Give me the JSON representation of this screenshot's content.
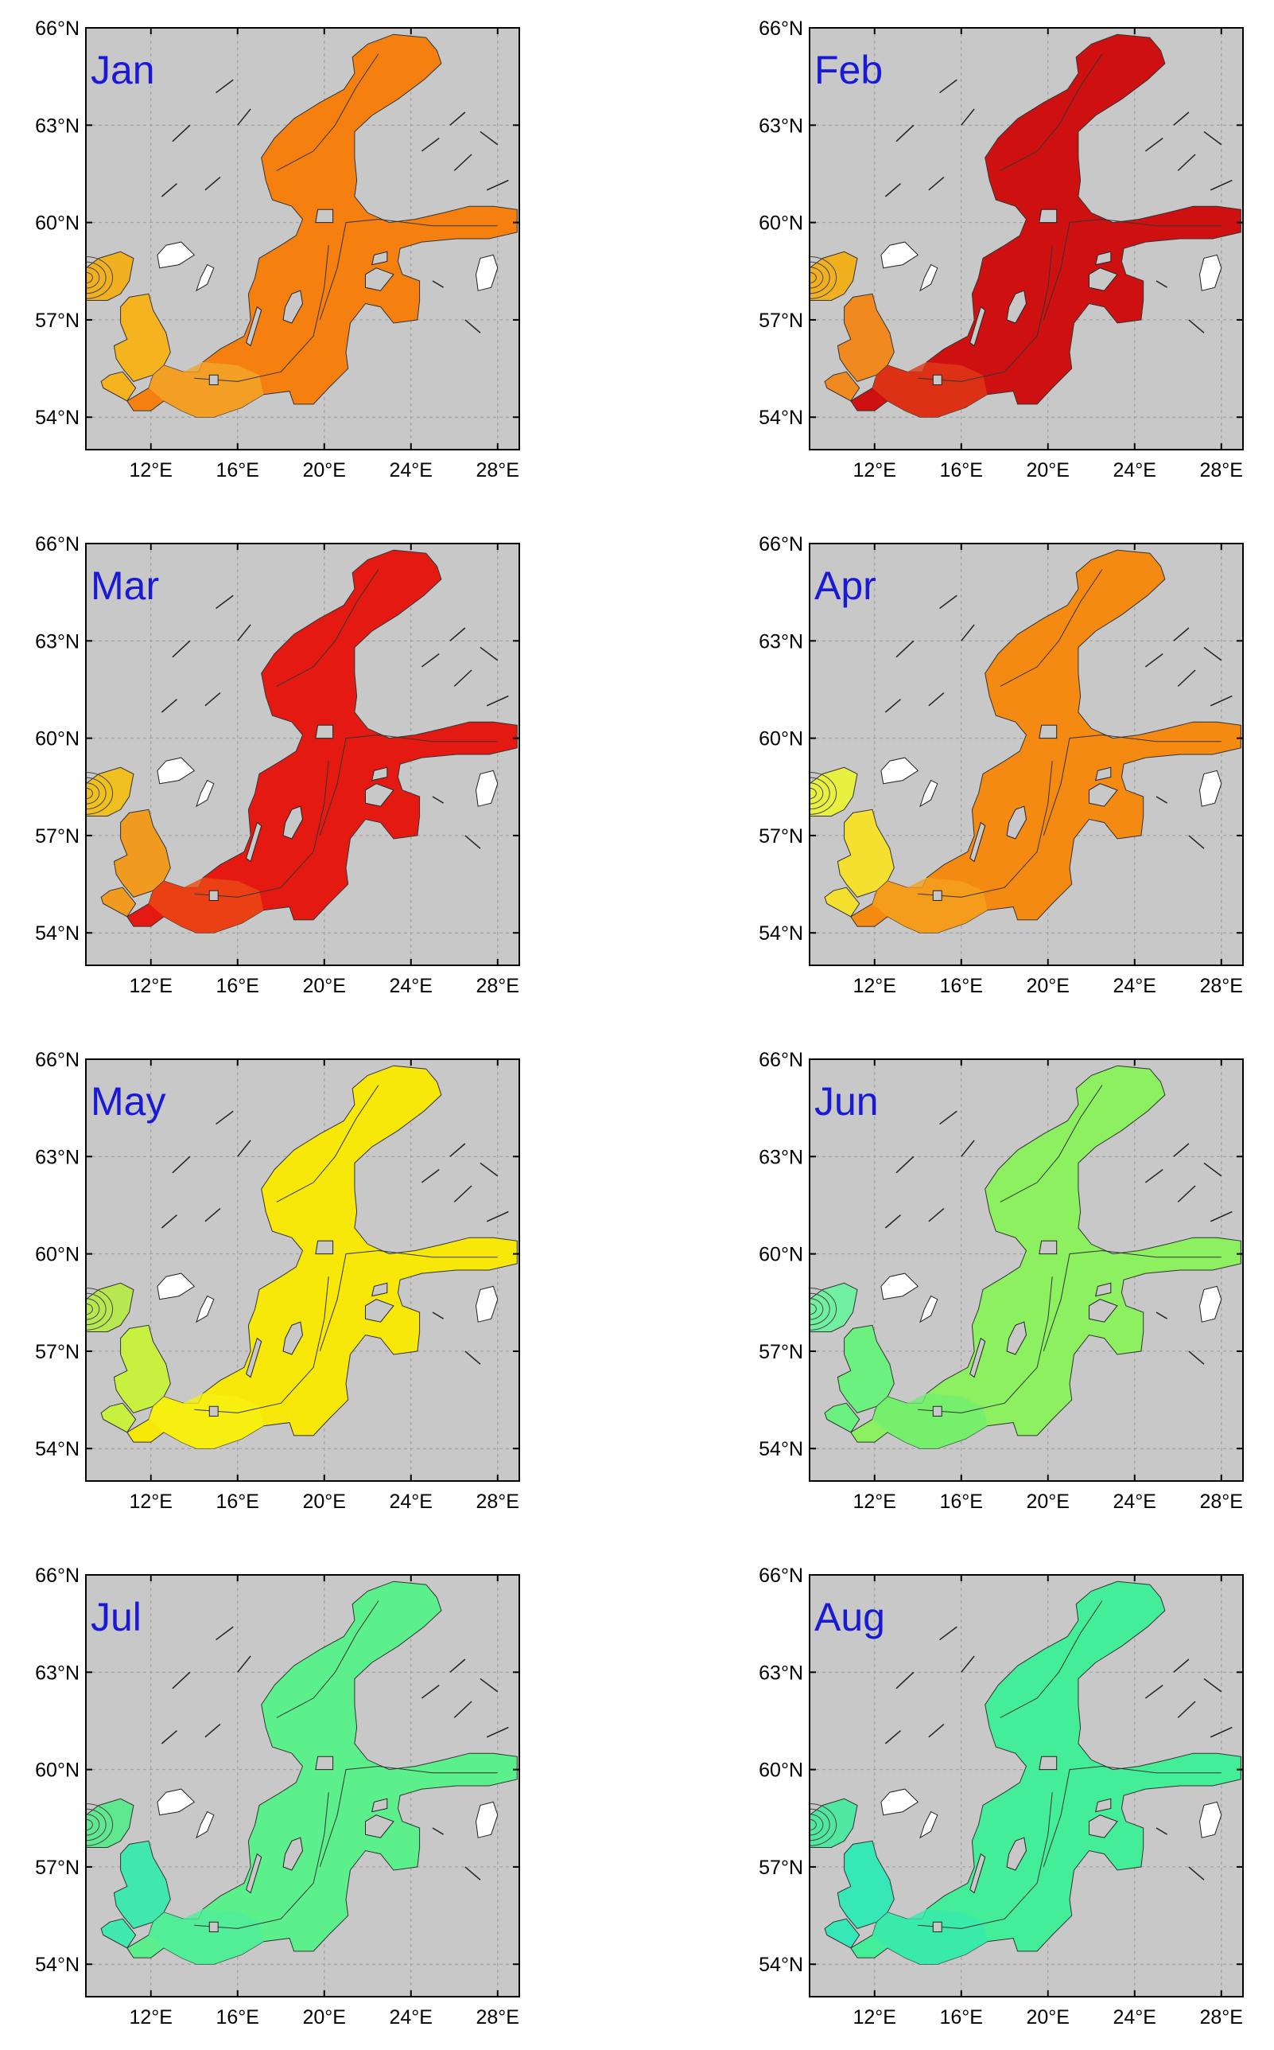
{
  "figure": {
    "label_color": "#1a1ad6",
    "land_color": "#c8c8c8",
    "panels": [
      {
        "month": "Jan",
        "sea_color": "#f5800f",
        "south_color": "#f3a52a",
        "kattegat_color": "#f5b320",
        "skag_color": "#f0b020"
      },
      {
        "month": "Feb",
        "sea_color": "#cf1010",
        "south_color": "#e03a18",
        "kattegat_color": "#f08a20",
        "skag_color": "#f0b020"
      },
      {
        "month": "Mar",
        "sea_color": "#e41a12",
        "south_color": "#ec4a15",
        "kattegat_color": "#f09a20",
        "skag_color": "#f0c020"
      },
      {
        "month": "Apr",
        "sea_color": "#f58a12",
        "south_color": "#f5a020",
        "kattegat_color": "#f5e030",
        "skag_color": "#e8f040"
      },
      {
        "month": "May",
        "sea_color": "#f7e80a",
        "south_color": "#f5f010",
        "kattegat_color": "#c8f040",
        "skag_color": "#b8e850"
      },
      {
        "month": "Jun",
        "sea_color": "#8cf060",
        "south_color": "#70ef70",
        "kattegat_color": "#6cf080",
        "skag_color": "#70f0a0"
      },
      {
        "month": "Jul",
        "sea_color": "#5cf08c",
        "south_color": "#50ee9a",
        "kattegat_color": "#40e8b0",
        "skag_color": "#60e890"
      },
      {
        "month": "Aug",
        "sea_color": "#44ee98",
        "south_color": "#38e8b0",
        "kattegat_color": "#36e8b8",
        "skag_color": "#50e8a0"
      }
    ],
    "axes": {
      "lat_ticks": [
        {
          "value": 54,
          "label": "54°N"
        },
        {
          "value": 57,
          "label": "57°N"
        },
        {
          "value": 60,
          "label": "60°N"
        },
        {
          "value": 63,
          "label": "63°N"
        },
        {
          "value": 66,
          "label": "66°N"
        }
      ],
      "lon_ticks": [
        {
          "value": 12,
          "label": "12°E"
        },
        {
          "value": 16,
          "label": "16°E"
        },
        {
          "value": 20,
          "label": "20°E"
        },
        {
          "value": 24,
          "label": "24°E"
        },
        {
          "value": 28,
          "label": "28°E"
        }
      ],
      "lon_range": [
        9,
        29
      ],
      "lat_range": [
        53,
        66
      ]
    }
  }
}
